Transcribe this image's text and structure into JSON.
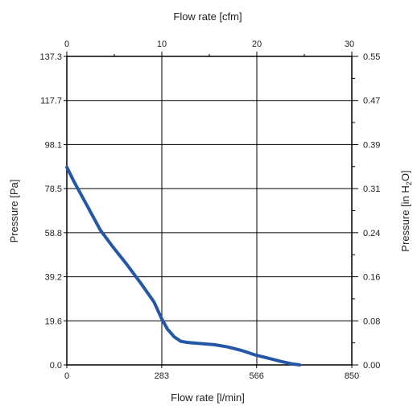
{
  "chart_data": {
    "type": "line",
    "title": "",
    "x_bottom_label": "Flow rate [l/min]",
    "x_top_label": "Flow rate [cfm]",
    "y_left_label": "Pressure [Pa]",
    "y_right_label_main": "Pressure [in H",
    "y_right_label_sub": "2",
    "y_right_label_end": "O]",
    "x_bottom_ticks": [
      "0",
      "283",
      "566",
      "850"
    ],
    "x_bottom_tick_values": [
      0,
      283,
      566,
      850
    ],
    "x_top_ticks": [
      "0",
      "10",
      "20",
      "30"
    ],
    "y_left_ticks": [
      "0.0",
      "19.6",
      "39.2",
      "58.8",
      "78.5",
      "98.1",
      "117.7",
      "137.3"
    ],
    "y_left_tick_values": [
      0,
      19.6,
      39.2,
      58.8,
      78.5,
      98.1,
      117.7,
      137.3
    ],
    "y_right_ticks": [
      "0.00",
      "0.08",
      "0.16",
      "0.24",
      "0.31",
      "0.39",
      "0.47",
      "0.55"
    ],
    "xlim": [
      0,
      850
    ],
    "ylim": [
      0,
      137.3
    ],
    "grid": true,
    "line_color": "#2557a7",
    "series": [
      {
        "x": [
          0,
          20,
          60,
          100,
          140,
          180,
          220,
          260,
          283,
          300,
          320,
          340,
          360,
          400,
          440,
          480,
          520,
          560,
          600,
          640,
          670,
          695
        ],
        "y": [
          88.0,
          82.0,
          71.0,
          60.0,
          52.0,
          44.5,
          36.5,
          28.0,
          20.5,
          16.0,
          12.5,
          10.5,
          10.0,
          9.5,
          9.0,
          8.0,
          6.5,
          4.5,
          3.0,
          1.5,
          0.5,
          0.0
        ]
      }
    ]
  }
}
